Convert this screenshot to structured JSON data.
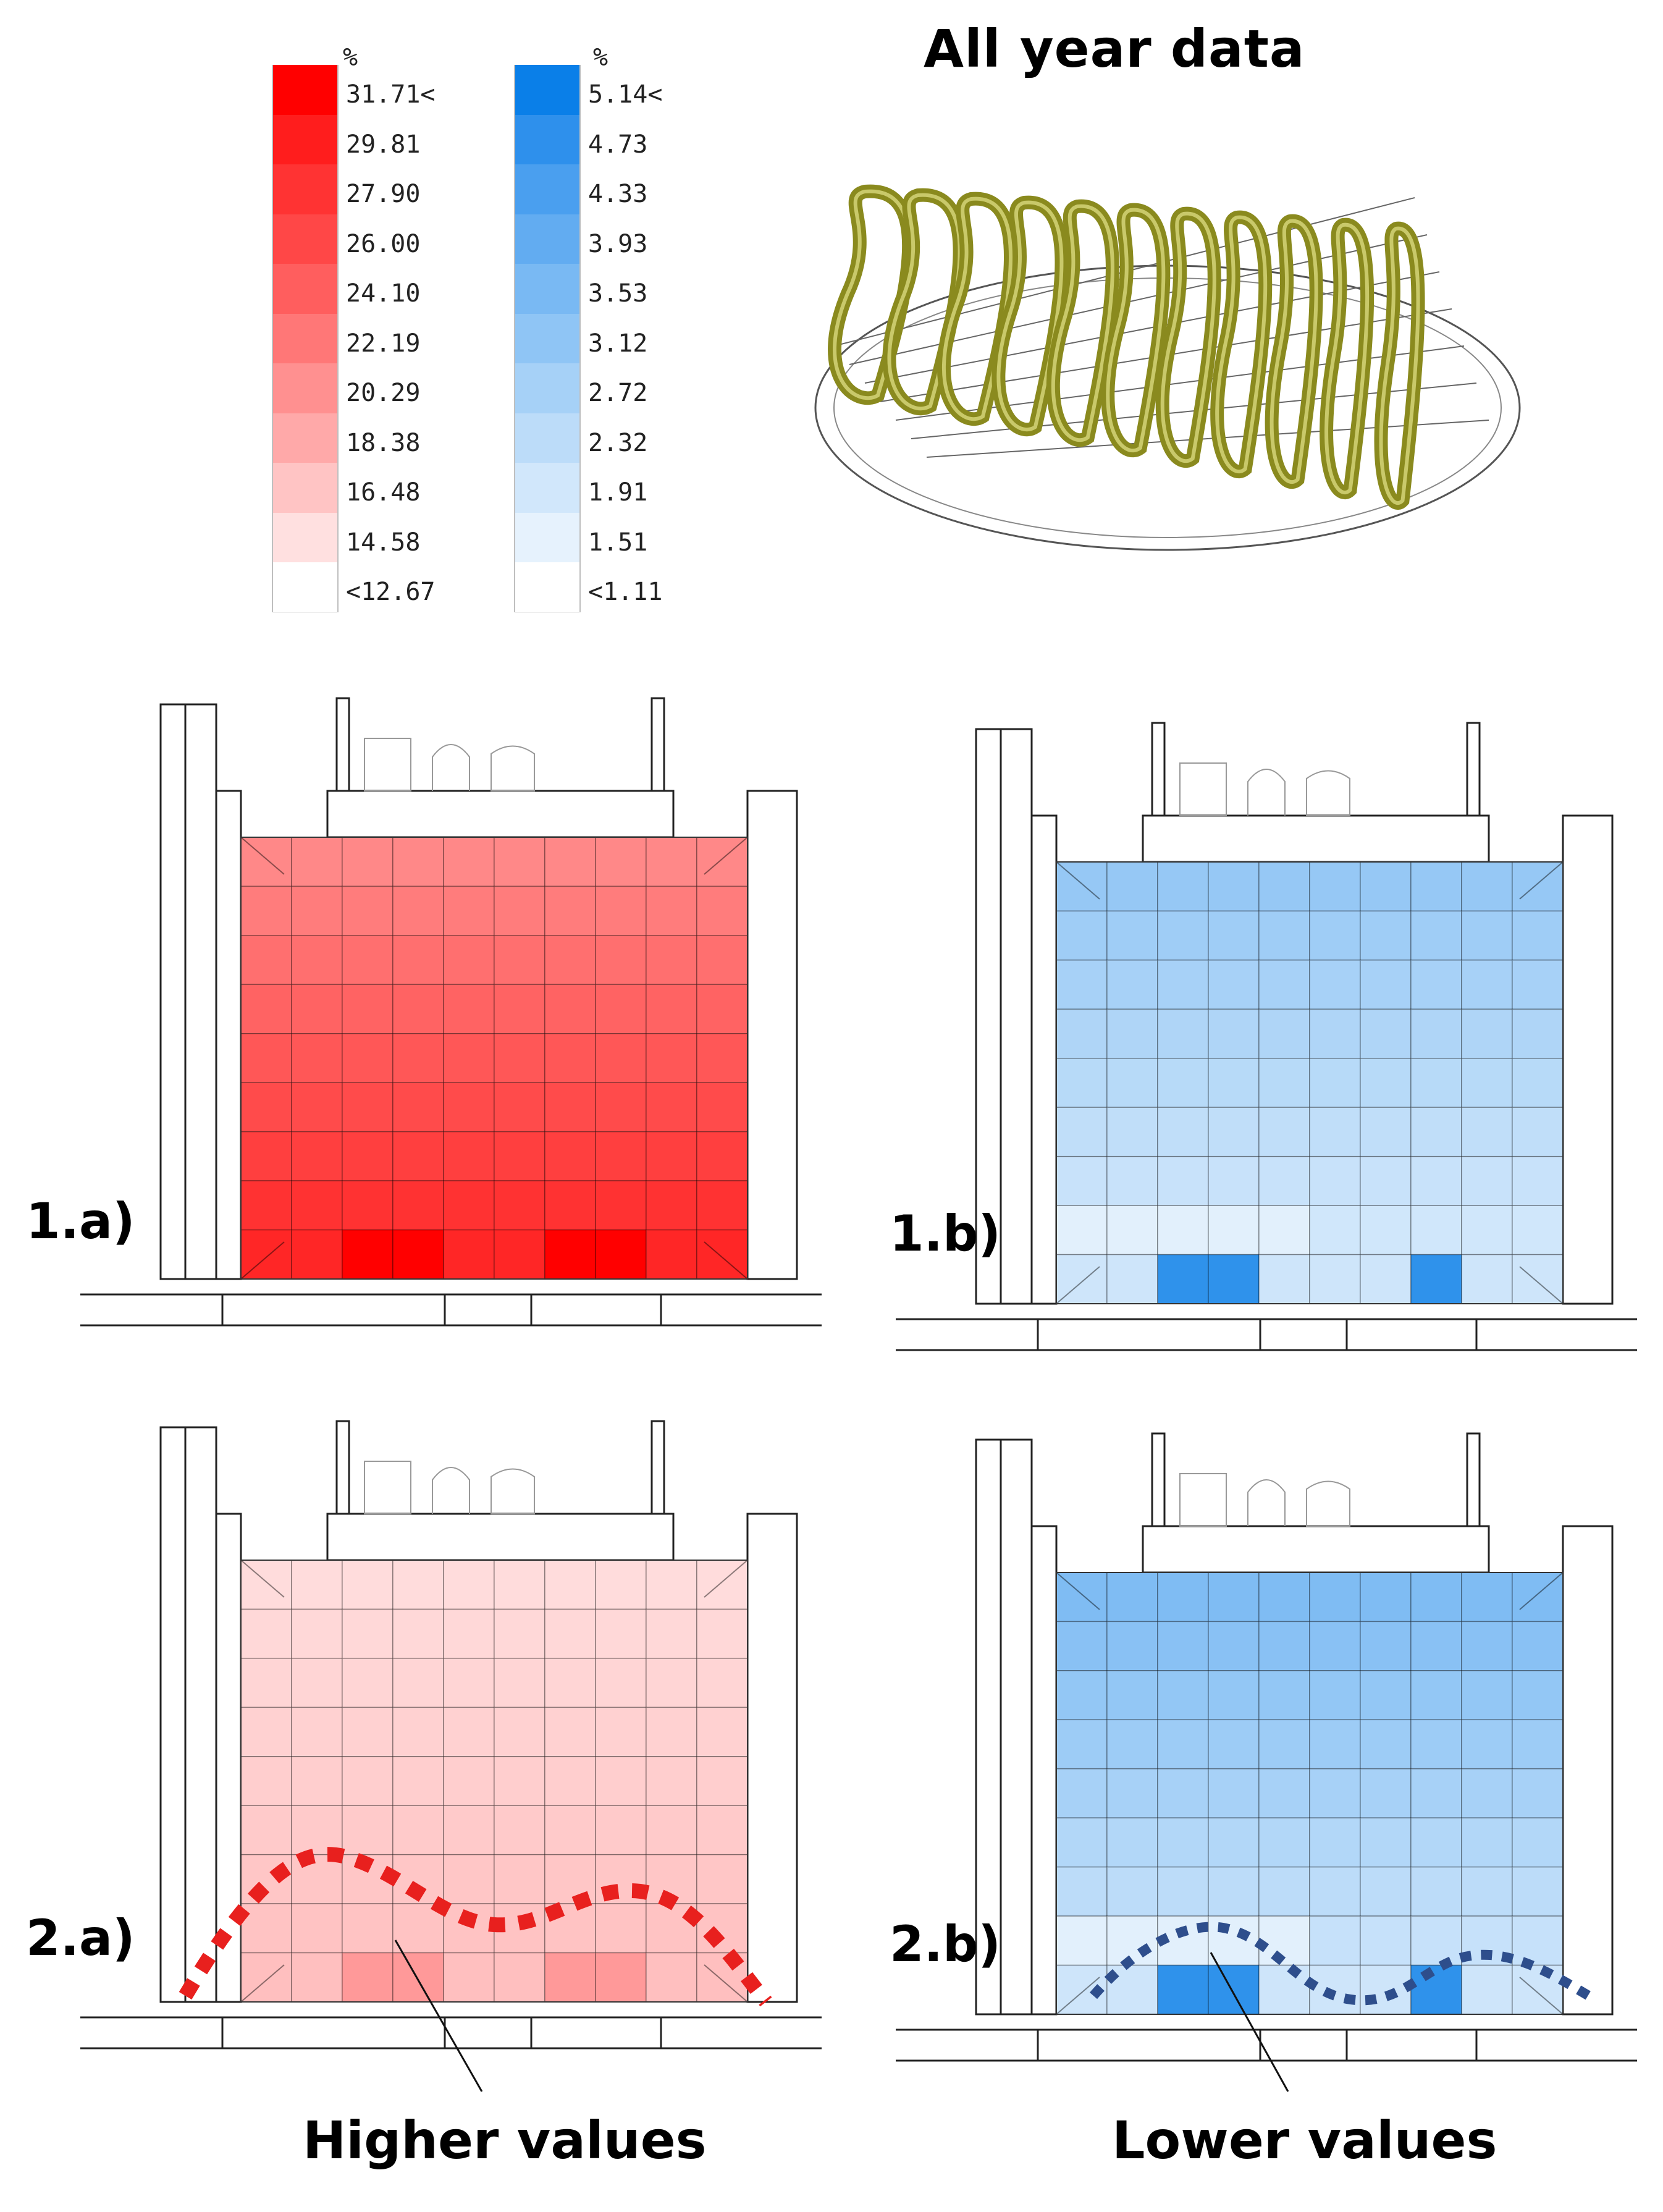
{
  "title": "All year data",
  "legend_red": {
    "unit": "%",
    "ticks": [
      "31.71<",
      "29.81",
      "27.90",
      "26.00",
      "24.10",
      "22.19",
      "20.29",
      "18.38",
      "16.48",
      "14.58",
      "<12.67"
    ],
    "colors": [
      "#ff0000",
      "#ff1d1d",
      "#ff3333",
      "#ff4747",
      "#ff5e5e",
      "#ff7777",
      "#ff9090",
      "#ffa9a9",
      "#ffc4c4",
      "#ffe0e0",
      "#ffffff"
    ]
  },
  "legend_blue": {
    "unit": "%",
    "ticks": [
      "5.14<",
      "4.73",
      "4.33",
      "3.93",
      "3.53",
      "3.12",
      "2.72",
      "2.32",
      "1.91",
      "1.51",
      "<1.11"
    ],
    "colors": [
      "#0a7fe8",
      "#2e90ec",
      "#4a9fef",
      "#62acf1",
      "#79b9f3",
      "#8fc5f5",
      "#a6d1f7",
      "#bcdcf9",
      "#d1e7fb",
      "#e6f2fd",
      "#ffffff"
    ]
  },
  "panels": [
    {
      "label": "1.a)",
      "scheme": "red",
      "intensity": 0.85
    },
    {
      "label": "1.b)",
      "scheme": "blue",
      "intensity": 0.45
    },
    {
      "label": "2.a)",
      "scheme": "red",
      "intensity": 0.25
    },
    {
      "label": "2.b)",
      "scheme": "blue",
      "intensity": 0.55
    }
  ],
  "annotations": {
    "higher": "Higher values",
    "lower": "Lower values"
  },
  "colors": {
    "red_curve": "#e8201e",
    "blue_curve": "#2e4e8c",
    "sunpath": "#8a8a1e"
  }
}
